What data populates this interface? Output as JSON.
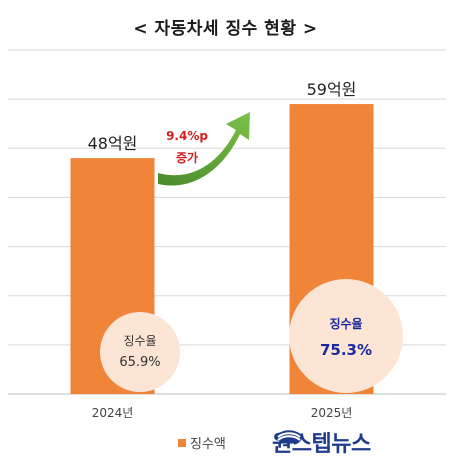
{
  "chart_data": {
    "type": "bar",
    "title": "< 자동차세 징수 현황 >",
    "categories": [
      "2024년",
      "2025년"
    ],
    "series": [
      {
        "name": "징수액",
        "values": [
          48,
          59
        ],
        "value_labels": [
          "48억원",
          "59억원"
        ],
        "color": "#f08439"
      }
    ],
    "ylim": [
      0,
      70
    ],
    "grid": true,
    "legend": "bottom",
    "annotation": {
      "line1": "9.4%p",
      "line2": "증가"
    },
    "rates": [
      {
        "label": "징수율",
        "value": "65.9%"
      },
      {
        "label": "징수율",
        "value": "75.3%"
      }
    ]
  },
  "watermark": "원스텝뉴스"
}
